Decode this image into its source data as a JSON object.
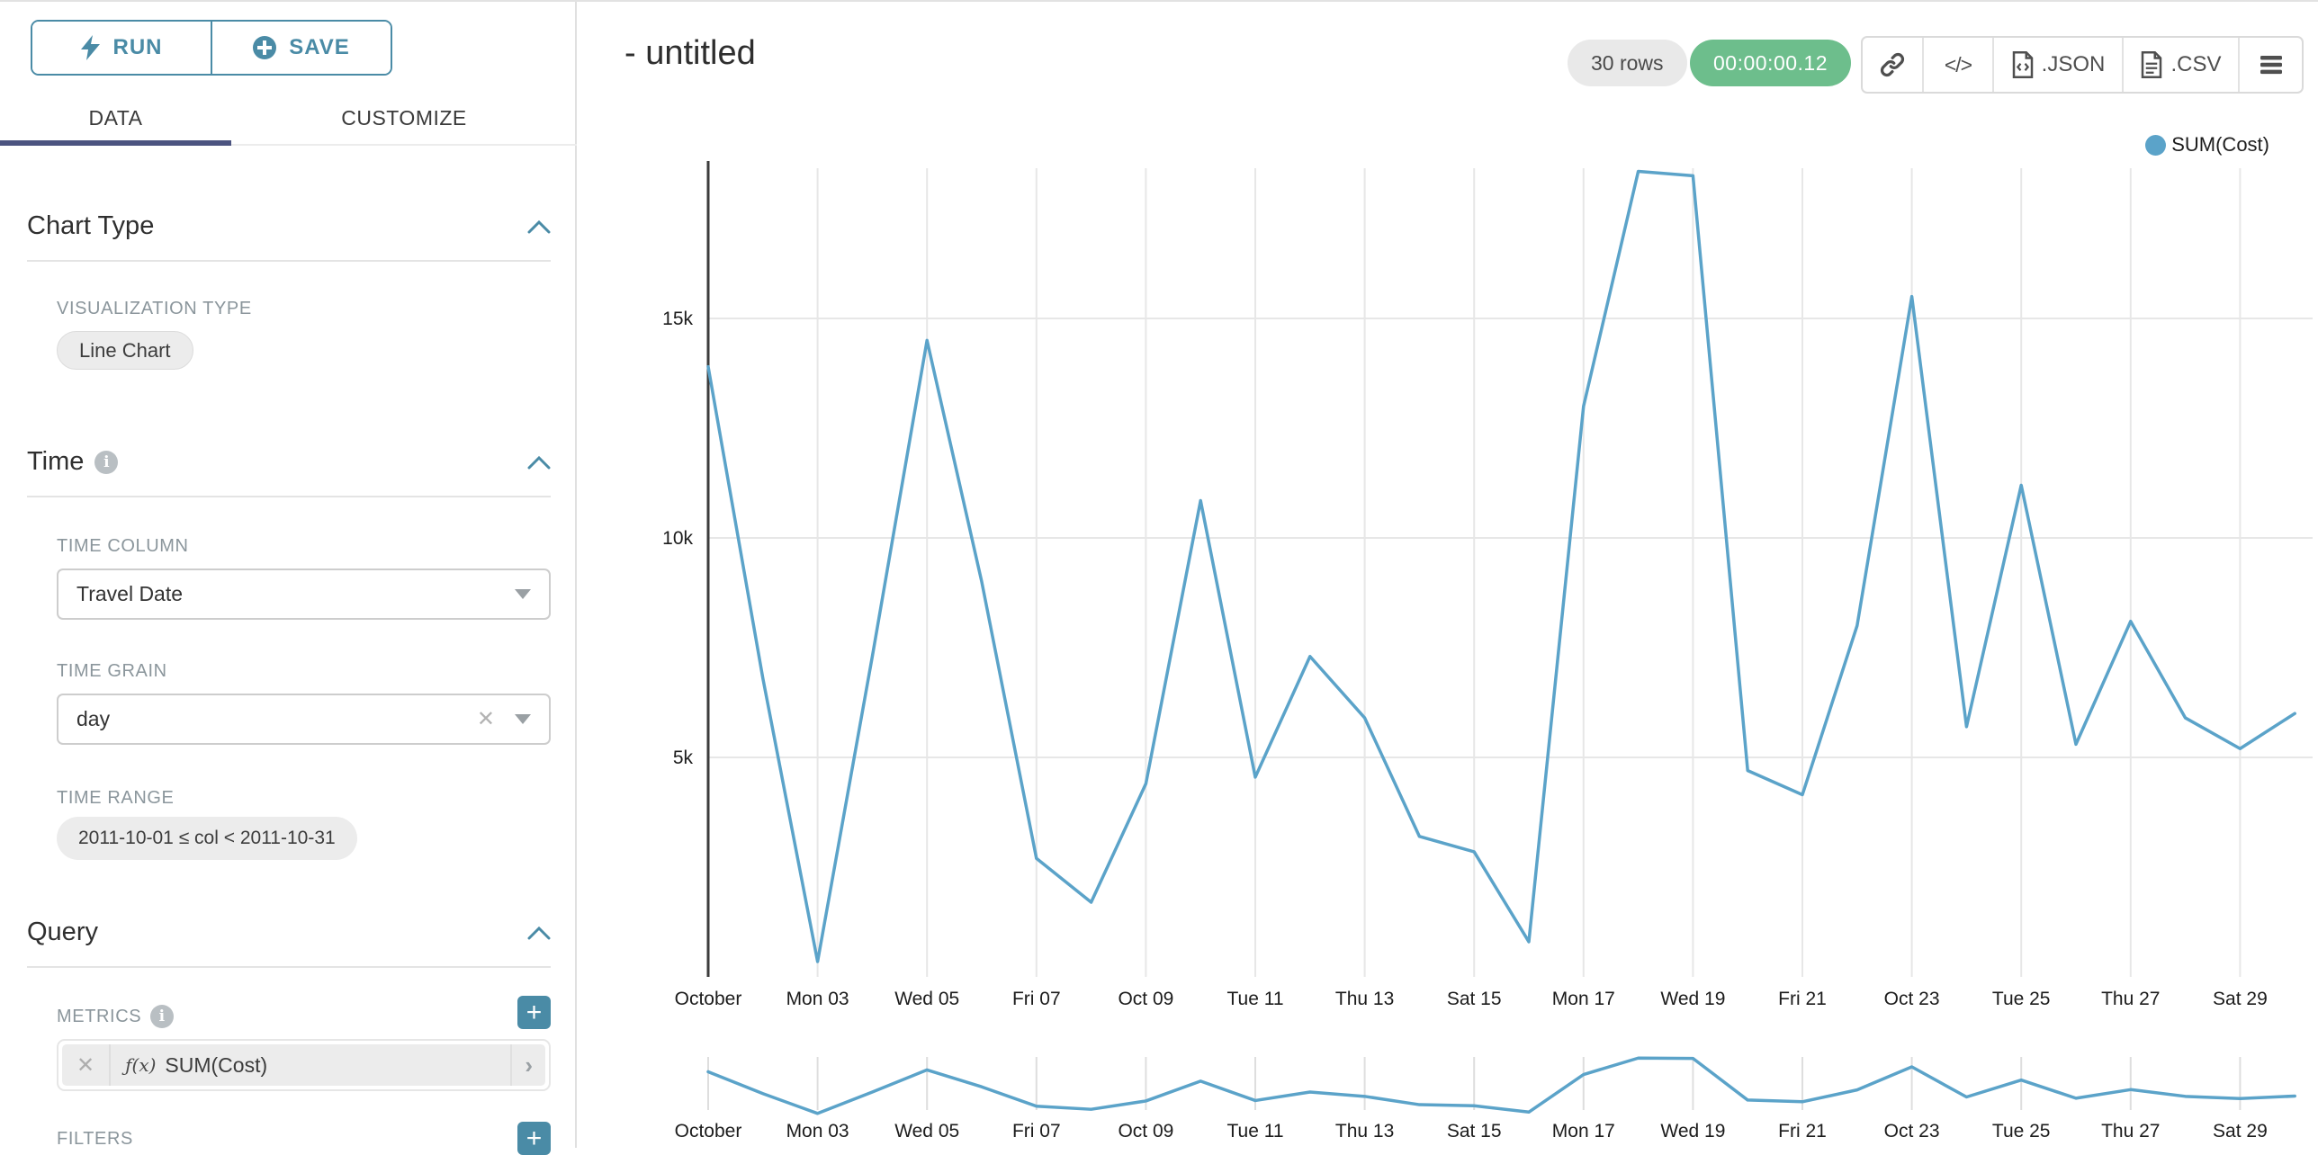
{
  "colors": {
    "accent": "#4a8ba6",
    "tab_active": "#4c5480",
    "line": "#5ba3c9",
    "green_badge": "#6dbe8c",
    "grid": "#e7e7e7",
    "axis": "#3c3c3c",
    "tick_text": "#1c1c1c"
  },
  "sidebar": {
    "run_label": "RUN",
    "save_label": "SAVE",
    "tabs": [
      {
        "label": "DATA"
      },
      {
        "label": "CUSTOMIZE"
      }
    ],
    "chart_type": {
      "title": "Chart Type",
      "viz_label": "VISUALIZATION TYPE",
      "viz_value": "Line Chart"
    },
    "time": {
      "title": "Time",
      "column_label": "TIME COLUMN",
      "column_value": "Travel Date",
      "grain_label": "TIME GRAIN",
      "grain_value": "day",
      "range_label": "TIME RANGE",
      "range_value": "2011-10-01 ≤ col < 2011-10-31"
    },
    "query": {
      "title": "Query",
      "metrics_label": "METRICS",
      "metric_fx": "ƒ(x)",
      "metric_value": "SUM(Cost)",
      "filters_label": "FILTERS"
    }
  },
  "header": {
    "title": "- untitled",
    "rows_badge": "30 rows",
    "timer_badge": "00:00:00.12",
    "export_json_label": ".JSON",
    "export_csv_label": ".CSV"
  },
  "chart_data": {
    "type": "line",
    "legend": [
      "SUM(Cost)"
    ],
    "xlabel": "",
    "ylabel": "",
    "x_unit": "day of 2011-10",
    "x": [
      1,
      2,
      3,
      4,
      5,
      6,
      7,
      8,
      9,
      10,
      11,
      12,
      13,
      14,
      15,
      16,
      17,
      18,
      19,
      20,
      21,
      22,
      23,
      24,
      25,
      26,
      27,
      28,
      29,
      30
    ],
    "series": [
      {
        "name": "SUM(Cost)",
        "values": [
          13900,
          6800,
          350,
          7300,
          14500,
          9000,
          2700,
          1700,
          4400,
          10850,
          4550,
          7300,
          5900,
          3200,
          2850,
          800,
          13000,
          18350,
          18250,
          4700,
          4150,
          8000,
          15500,
          5700,
          11200,
          5300,
          8100,
          5900,
          5200,
          6000
        ]
      }
    ],
    "xticks": [
      {
        "day": 1,
        "label": "October"
      },
      {
        "day": 3,
        "label": "Mon 03"
      },
      {
        "day": 5,
        "label": "Wed 05"
      },
      {
        "day": 7,
        "label": "Fri 07"
      },
      {
        "day": 9,
        "label": "Oct 09"
      },
      {
        "day": 11,
        "label": "Tue 11"
      },
      {
        "day": 13,
        "label": "Thu 13"
      },
      {
        "day": 15,
        "label": "Sat 15"
      },
      {
        "day": 17,
        "label": "Mon 17"
      },
      {
        "day": 19,
        "label": "Wed 19"
      },
      {
        "day": 21,
        "label": "Fri 21"
      },
      {
        "day": 23,
        "label": "Oct 23"
      },
      {
        "day": 25,
        "label": "Tue 25"
      },
      {
        "day": 27,
        "label": "Thu 27"
      },
      {
        "day": 29,
        "label": "Sat 29"
      }
    ],
    "yticks": [
      {
        "value": 5000,
        "label": "5k"
      },
      {
        "value": 10000,
        "label": "10k"
      },
      {
        "value": 15000,
        "label": "15k"
      }
    ],
    "ylim": [
      0,
      18400
    ],
    "grid": true,
    "legend_position": "top-right",
    "has_mini_brush_chart": true
  }
}
